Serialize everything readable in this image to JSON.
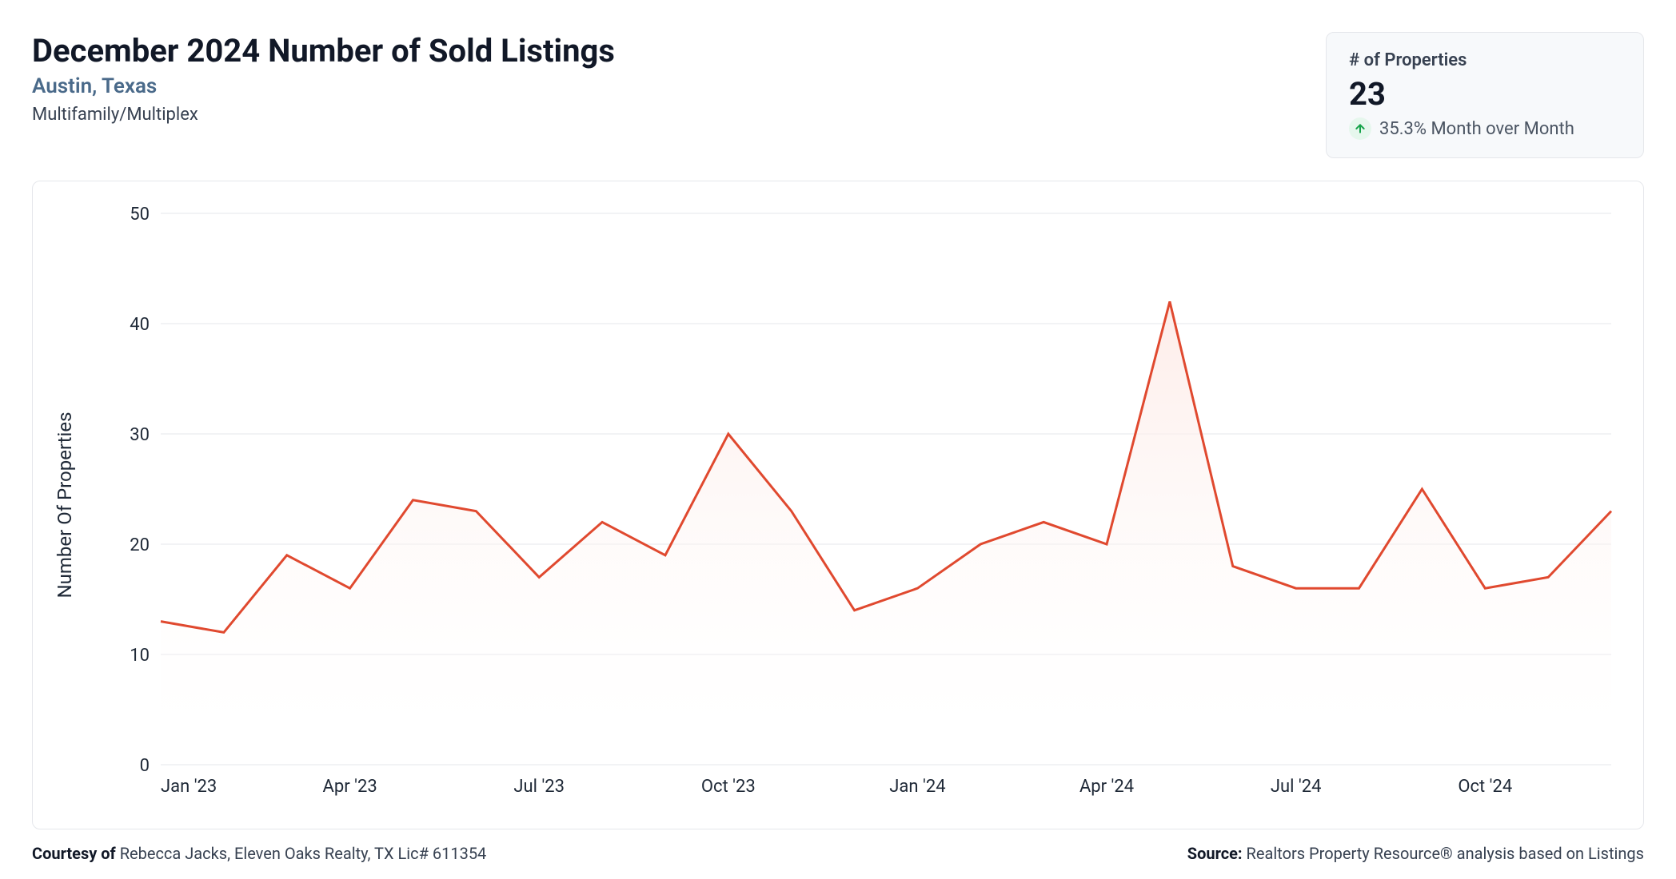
{
  "header": {
    "title": "December 2024 Number of Sold Listings",
    "location": "Austin, Texas",
    "category": "Multifamily/Multiplex"
  },
  "stat": {
    "label": "# of Properties",
    "value": "23",
    "delta_text": "35.3% Month over Month",
    "delta_direction": "up",
    "arrow_color": "#16a34a",
    "badge_bg": "#e6f7ed"
  },
  "chart": {
    "type": "area-line",
    "ylabel": "Number Of Properties",
    "ylim": [
      0,
      50
    ],
    "ytick_step": 10,
    "x_categories": [
      "Jan '23",
      "Feb '23",
      "Mar '23",
      "Apr '23",
      "May '23",
      "Jun '23",
      "Jul '23",
      "Aug '23",
      "Sep '23",
      "Oct '23",
      "Nov '23",
      "Dec '23",
      "Jan '24",
      "Feb '24",
      "Mar '24",
      "Apr '24",
      "May '24",
      "Jun '24",
      "Jul '24",
      "Aug '24",
      "Sep '24",
      "Oct '24",
      "Nov '24",
      "Dec '24"
    ],
    "x_tick_labels": [
      "Jan '23",
      "Apr '23",
      "Jul '23",
      "Oct '23",
      "Jan '24",
      "Apr '24",
      "Jul '24",
      "Oct '24"
    ],
    "x_tick_indices": [
      0,
      3,
      6,
      9,
      12,
      15,
      18,
      21
    ],
    "values": [
      13,
      12,
      19,
      16,
      24,
      23,
      17,
      22,
      19,
      30,
      23,
      14,
      16,
      20,
      22,
      20,
      42,
      18,
      16,
      16,
      25,
      16,
      17,
      23
    ],
    "line_color": "#e0492f",
    "fill_top_color": "#fdeae6",
    "fill_bottom_color": "#ffffff",
    "line_width": 3,
    "grid_color": "#e5e7eb",
    "background_color": "#ffffff",
    "axis_font_size": 22,
    "ylabel_font_size": 24
  },
  "footer": {
    "courtesy_label": "Courtesy of",
    "courtesy_text": "Rebecca Jacks, Eleven Oaks Realty, TX Lic# 611354",
    "source_label": "Source:",
    "source_text": "Realtors Property Resource® analysis based on Listings"
  },
  "colors": {
    "text_primary": "#111827",
    "text_secondary": "#374151",
    "subtitle": "#4a6a8a",
    "card_bg": "#f7f9fb",
    "border": "#e5e7eb"
  }
}
